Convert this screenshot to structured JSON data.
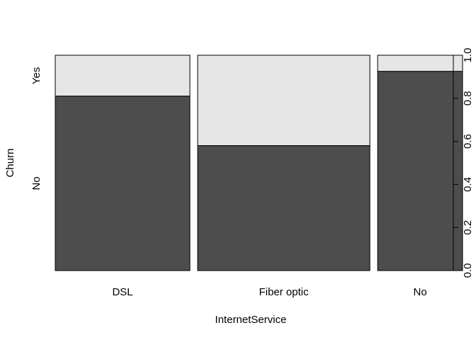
{
  "chart_data": {
    "type": "spineplot",
    "title": "",
    "xlabel": "InternetService",
    "ylabel": "Churn",
    "categories": [
      "DSL",
      "Fiber optic",
      "No"
    ],
    "category_shares": [
      0.3437,
      0.4396,
      0.2167
    ],
    "levels": [
      "No",
      "Yes"
    ],
    "no_fraction": [
      0.81,
      0.58,
      0.925
    ],
    "yes_fraction": [
      0.19,
      0.42,
      0.075
    ],
    "right_axis": {
      "ylim": [
        0,
        1
      ],
      "ticks": [
        "0.0",
        "0.2",
        "0.4",
        "0.6",
        "0.8",
        "1.0"
      ]
    },
    "grid": false,
    "legend": "none",
    "colors": {
      "No": "#4d4d4d",
      "Yes": "#e6e6e6",
      "border": "#000000"
    }
  }
}
